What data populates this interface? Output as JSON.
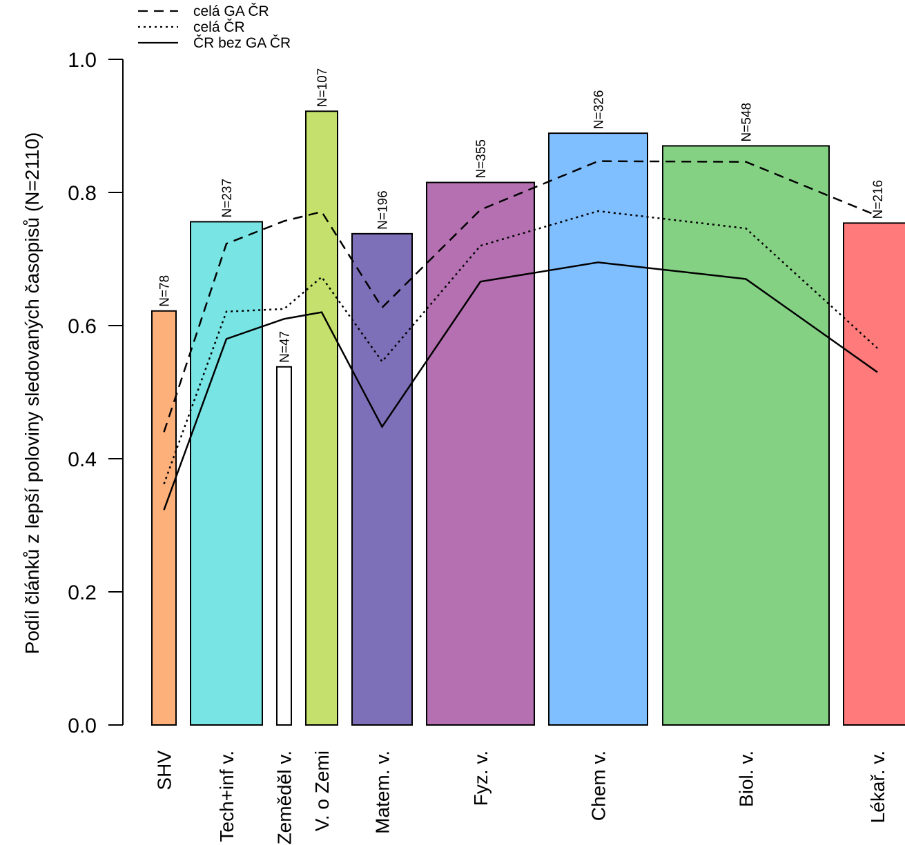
{
  "chart_data": {
    "type": "bar",
    "ylabel": "Podíl článků z lepší poloviny sledovaných časopisů (N=2110)",
    "ylim": [
      0,
      1
    ],
    "yticks": [
      "0.0",
      "0.2",
      "0.4",
      "0.6",
      "0.8",
      "1.0"
    ],
    "categories": [
      "SHV",
      "Tech+inf v.",
      "Zeměděl v.",
      "V. o Zemi",
      "Matem. v.",
      "Fyz. v.",
      "Chem v.",
      "Biol. v.",
      "Lékař. v."
    ],
    "values": [
      0.622,
      0.756,
      0.538,
      0.922,
      0.738,
      0.815,
      0.889,
      0.87,
      0.754
    ],
    "n_labels": [
      "N=78",
      "N=237",
      "N=47",
      "N=107",
      "N=196",
      "N=355",
      "N=326",
      "N=548",
      "N=216"
    ],
    "n": [
      78,
      237,
      47,
      107,
      196,
      355,
      326,
      548,
      216
    ],
    "colors": [
      "#FDB07A",
      "#79E4E4",
      "#FFFFFF",
      "#C5E06C",
      "#7E70B8",
      "#B570B2",
      "#80BFFF",
      "#85D184",
      "#FF7A7A"
    ],
    "series": [
      {
        "name": "celá GA ČR",
        "style": "dashed",
        "values": [
          0.44,
          0.723,
          0.757,
          0.771,
          0.627,
          0.774,
          0.847,
          0.846,
          0.765
        ]
      },
      {
        "name": "celá ČR",
        "style": "dotted",
        "values": [
          0.362,
          0.621,
          0.625,
          0.673,
          0.546,
          0.72,
          0.772,
          0.746,
          0.566
        ]
      },
      {
        "name": "ČR bez GA ČR",
        "style": "solid",
        "values": [
          0.323,
          0.58,
          0.61,
          0.62,
          0.448,
          0.666,
          0.695,
          0.67,
          0.53
        ]
      }
    ],
    "legend": "top-left",
    "grid": false
  }
}
